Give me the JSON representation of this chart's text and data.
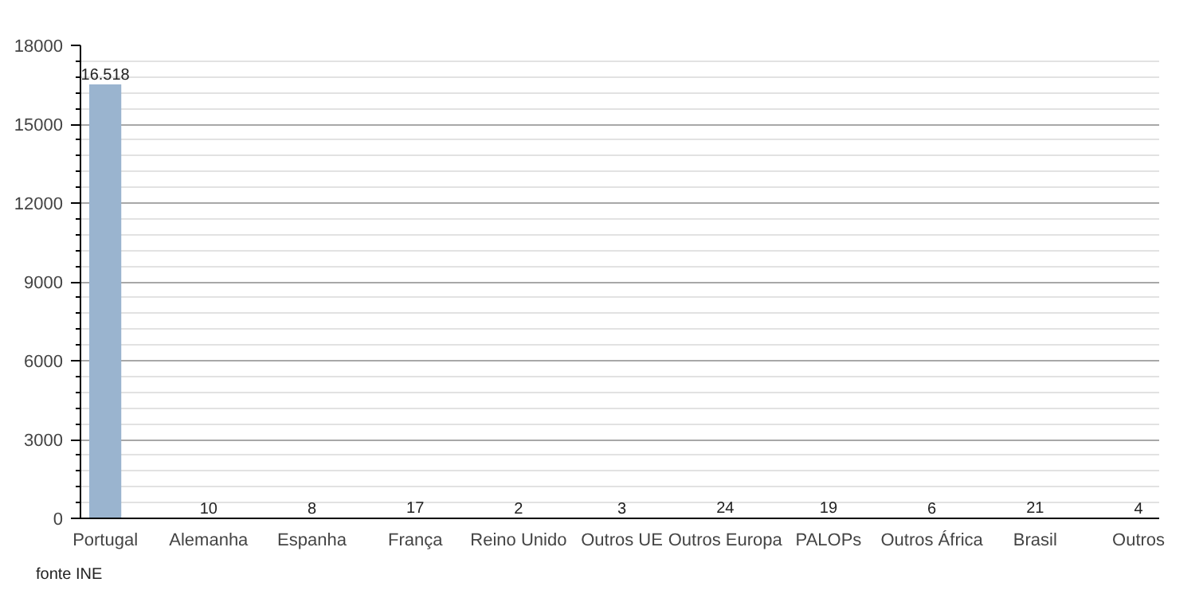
{
  "chart_data": {
    "type": "bar",
    "categories": [
      "Portugal",
      "Alemanha",
      "Espanha",
      "França",
      "Reino Unido",
      "Outros UE",
      "Outros Europa",
      "PALOPs",
      "Outros África",
      "Brasil",
      "Outros"
    ],
    "values": [
      16518,
      10,
      8,
      17,
      2,
      3,
      24,
      19,
      6,
      21,
      4
    ],
    "value_labels": [
      "16.518",
      "10",
      "8",
      "17",
      "2",
      "3",
      "24",
      "19",
      "6",
      "21",
      "4"
    ],
    "color": "#9ab4cf",
    "ylim": [
      0,
      18000
    ],
    "yticks": [
      0,
      3000,
      6000,
      9000,
      12000,
      15000,
      18000
    ],
    "grid": "y",
    "annotations": [
      "fonte INE"
    ]
  }
}
